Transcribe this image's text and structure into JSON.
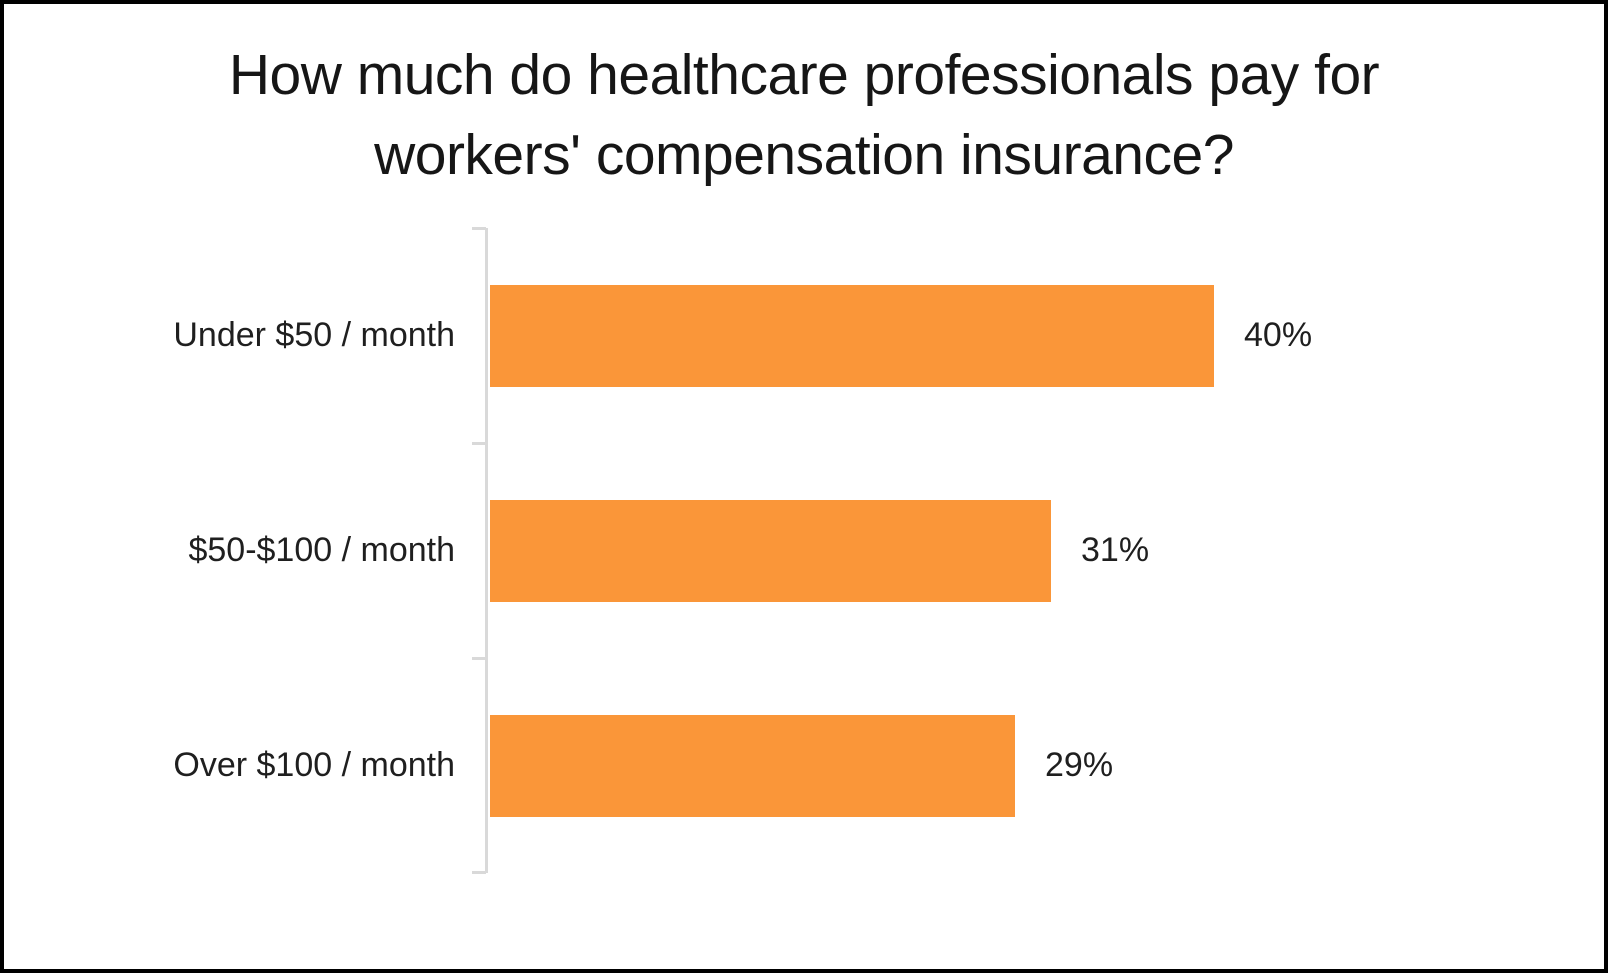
{
  "chart_data": {
    "type": "bar",
    "orientation": "horizontal",
    "title": "How much do healthcare professionals pay for workers' compensation insurance?",
    "categories": [
      "Under $50 / month",
      "$50-$100 / month",
      "Over $100 / month"
    ],
    "values": [
      40,
      31,
      29
    ],
    "value_labels": [
      "40%",
      "31%",
      "29%"
    ],
    "value_label_position": "outside-end",
    "bar_color": "#FA9639",
    "axis_color": "#D9D9D9",
    "background_color": "#FFFFFF",
    "xlim": [
      0,
      45
    ],
    "grid": false,
    "legend": false
  }
}
